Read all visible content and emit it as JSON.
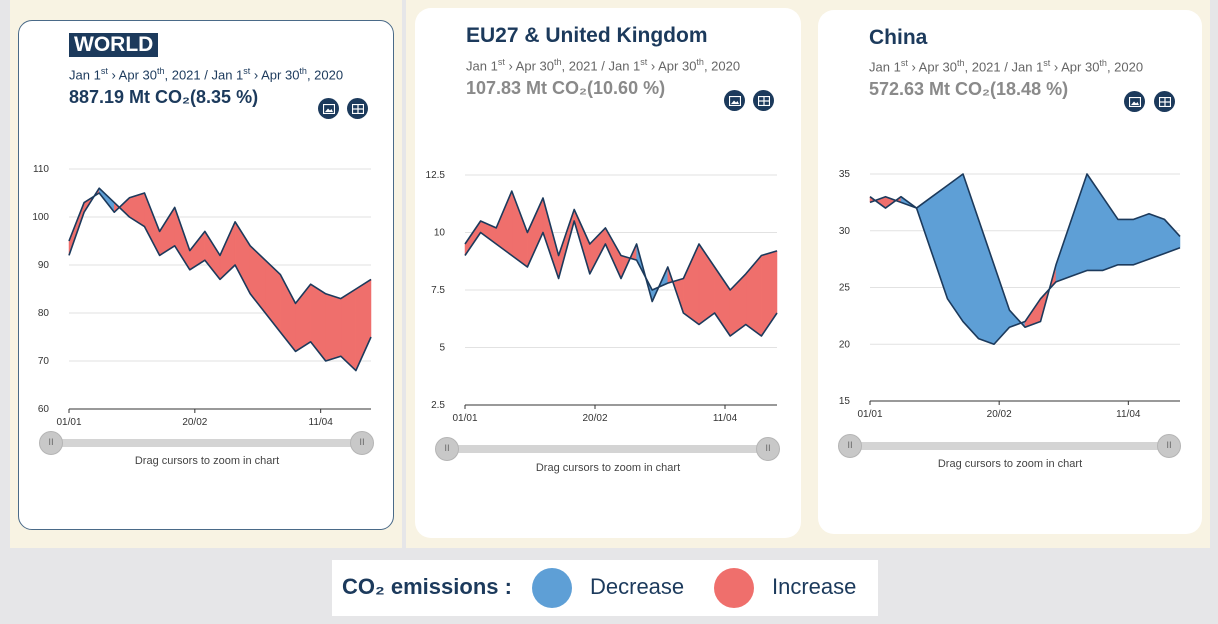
{
  "subtitle": {
    "prefix": "Jan 1",
    "sup_st": "st",
    "mid1": " › Apr 30",
    "sup_th": "th",
    "mid2": ", 2021 / Jan 1",
    "mid3": " › Apr 30",
    "end": ", 2020"
  },
  "drag_hint": "Drag cursors to zoom in chart",
  "handle_glyph": "II",
  "legend": {
    "label": "CO₂ emissions :",
    "decrease": "Decrease",
    "increase": "Increase"
  },
  "colors": {
    "decrease": "#5e9fd6",
    "increase": "#ef6f6c",
    "line": "#1c3a5c",
    "grid": "#e2e2e2"
  },
  "cards": [
    {
      "title": "WORLD",
      "value": "887.19 Mt CO₂(8.35 %)"
    },
    {
      "title": "EU27 & United Kingdom",
      "value": "107.83 Mt CO₂(10.60 %)"
    },
    {
      "title": "China",
      "value": "572.63 Mt CO₂(18.48 %)"
    }
  ],
  "chart_data": [
    {
      "type": "area",
      "title": "WORLD",
      "x_ticks": [
        "01/01",
        "20/02",
        "11/04"
      ],
      "x_tick_days": [
        0,
        50,
        100
      ],
      "x_range": [
        0,
        120
      ],
      "y_ticks": [
        60,
        70,
        80,
        90,
        100,
        110
      ],
      "ylim": [
        60,
        110
      ],
      "series": [
        {
          "name": "2020",
          "days": [
            0,
            6,
            12,
            18,
            24,
            30,
            36,
            42,
            48,
            54,
            60,
            66,
            72,
            78,
            84,
            90,
            96,
            102,
            108,
            114,
            120
          ],
          "values": [
            95,
            103,
            105,
            101,
            104,
            105,
            97,
            102,
            93,
            97,
            92,
            99,
            94,
            91,
            88,
            82,
            86,
            84,
            83,
            85,
            87
          ]
        },
        {
          "name": "2021",
          "days": [
            0,
            6,
            12,
            18,
            24,
            30,
            36,
            42,
            48,
            54,
            60,
            66,
            72,
            78,
            84,
            90,
            96,
            102,
            108,
            114,
            120
          ],
          "values": [
            92,
            101,
            106,
            103,
            100,
            98,
            92,
            94,
            89,
            91,
            87,
            90,
            84,
            80,
            76,
            72,
            74,
            70,
            71,
            68,
            75
          ]
        }
      ]
    },
    {
      "type": "area",
      "title": "EU27 & United Kingdom",
      "x_ticks": [
        "01/01",
        "20/02",
        "11/04"
      ],
      "x_tick_days": [
        0,
        50,
        100
      ],
      "x_range": [
        0,
        120
      ],
      "y_ticks": [
        2.5,
        5,
        7.5,
        10,
        12.5
      ],
      "ylim": [
        2.5,
        12.5
      ],
      "series": [
        {
          "name": "2020",
          "days": [
            0,
            6,
            12,
            18,
            24,
            30,
            36,
            42,
            48,
            54,
            60,
            66,
            72,
            78,
            84,
            90,
            96,
            102,
            108,
            114,
            120
          ],
          "values": [
            9.5,
            10.5,
            10.2,
            11.8,
            10.0,
            11.5,
            9.0,
            11.0,
            9.5,
            10.2,
            9.0,
            8.8,
            7.5,
            7.8,
            8.0,
            9.5,
            8.5,
            7.5,
            8.2,
            9.0,
            9.2
          ]
        },
        {
          "name": "2021",
          "days": [
            0,
            6,
            12,
            18,
            24,
            30,
            36,
            42,
            48,
            54,
            60,
            66,
            72,
            78,
            84,
            90,
            96,
            102,
            108,
            114,
            120
          ],
          "values": [
            9.0,
            10.0,
            9.5,
            9.0,
            8.5,
            10.0,
            8.0,
            10.5,
            8.2,
            9.5,
            8.0,
            9.5,
            7.0,
            8.5,
            6.5,
            6.0,
            6.5,
            5.5,
            6.0,
            5.5,
            6.5
          ]
        }
      ]
    },
    {
      "type": "area",
      "title": "China",
      "x_ticks": [
        "01/01",
        "20/02",
        "11/04"
      ],
      "x_tick_days": [
        0,
        50,
        100
      ],
      "x_range": [
        0,
        120
      ],
      "y_ticks": [
        15,
        20,
        25,
        30,
        35
      ],
      "ylim": [
        15,
        35
      ],
      "series": [
        {
          "name": "2020",
          "days": [
            0,
            6,
            12,
            18,
            24,
            30,
            36,
            42,
            48,
            54,
            60,
            66,
            72,
            78,
            84,
            90,
            96,
            102,
            108,
            114,
            120
          ],
          "values": [
            32.5,
            33,
            32.5,
            32,
            28,
            24,
            22,
            20.5,
            20,
            21.5,
            22,
            24,
            25.5,
            26,
            26.5,
            26.5,
            27,
            27,
            27.5,
            28,
            28.5
          ]
        },
        {
          "name": "2021",
          "days": [
            0,
            6,
            12,
            18,
            24,
            30,
            36,
            42,
            48,
            54,
            60,
            66,
            72,
            78,
            84,
            90,
            96,
            102,
            108,
            114,
            120
          ],
          "values": [
            33,
            32,
            33,
            32,
            33,
            34,
            35,
            31,
            27,
            23,
            21.5,
            22,
            27,
            31,
            35,
            33,
            31,
            31,
            31.5,
            31,
            29.5
          ]
        }
      ]
    }
  ]
}
